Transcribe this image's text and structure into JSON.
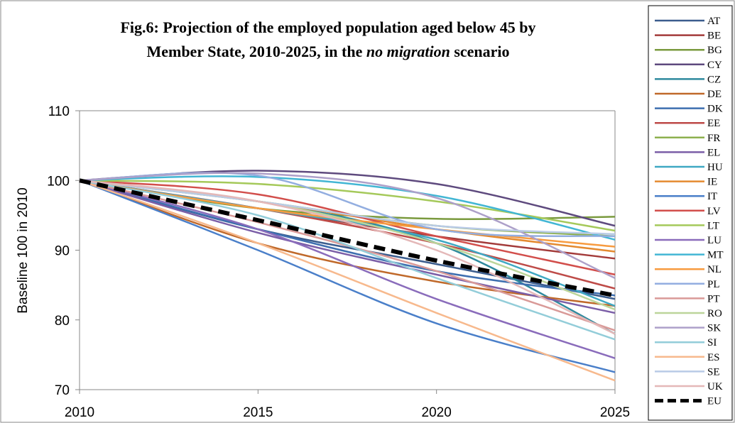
{
  "chart_data": {
    "type": "line",
    "title": {
      "line1": "Fig.6: Projection of the employed population aged below 45 by",
      "line2_start": "Member State, 2010-2025, in the",
      "line2_italic": "no migration",
      "line2_end": "scenario"
    },
    "y_label": "Baseline 100 in 2010",
    "x": [
      2010,
      2015,
      2020,
      2025
    ],
    "xlim": [
      2010,
      2025
    ],
    "xticks": [
      2010,
      2015,
      2020,
      2025
    ],
    "ylim": [
      70,
      110
    ],
    "yticks": [
      70,
      80,
      90,
      100,
      110
    ],
    "grid": false,
    "legend": "right",
    "series": [
      {
        "name": "AT",
        "color": "#3b5d8e",
        "values": [
          100,
          93,
          88,
          83
        ]
      },
      {
        "name": "BE",
        "color": "#a33b3a",
        "values": [
          100,
          96,
          92,
          88.8
        ]
      },
      {
        "name": "BG",
        "color": "#7a9a3e",
        "values": [
          100,
          96,
          94.5,
          94.8
        ]
      },
      {
        "name": "CY",
        "color": "#5e4a7e",
        "values": [
          100,
          101.4,
          99.5,
          93.5
        ]
      },
      {
        "name": "CZ",
        "color": "#2f8a9e",
        "values": [
          100,
          97,
          91,
          78
        ]
      },
      {
        "name": "DE",
        "color": "#c0692a",
        "values": [
          100,
          91,
          85.5,
          82
        ]
      },
      {
        "name": "DK",
        "color": "#3e6fb0",
        "values": [
          100,
          93,
          87,
          83.5
        ]
      },
      {
        "name": "EE",
        "color": "#be4b48",
        "values": [
          100,
          96,
          91,
          84.5
        ]
      },
      {
        "name": "FR",
        "color": "#8db04f",
        "values": [
          100,
          97,
          93.5,
          92
        ]
      },
      {
        "name": "EL",
        "color": "#7b5ea7",
        "values": [
          100,
          92.5,
          86.5,
          81
        ]
      },
      {
        "name": "HU",
        "color": "#3fa8c3",
        "values": [
          100,
          96,
          91.5,
          82
        ]
      },
      {
        "name": "IE",
        "color": "#e48a30",
        "values": [
          100,
          97,
          93,
          89.8
        ]
      },
      {
        "name": "IT",
        "color": "#4a7fc9",
        "values": [
          100,
          90,
          79.5,
          72.5
        ]
      },
      {
        "name": "LV",
        "color": "#d24e4b",
        "values": [
          100,
          98,
          92,
          86.5
        ]
      },
      {
        "name": "LT",
        "color": "#a5c95a",
        "values": [
          100,
          99.5,
          97,
          92.8
        ]
      },
      {
        "name": "LU",
        "color": "#8a6cbb",
        "values": [
          100,
          93,
          83,
          74.5
        ]
      },
      {
        "name": "MT",
        "color": "#42b6d4",
        "values": [
          100,
          100.5,
          97.8,
          91.5
        ]
      },
      {
        "name": "NL",
        "color": "#f79b40",
        "values": [
          100,
          96,
          93,
          90.5
        ]
      },
      {
        "name": "PL",
        "color": "#93aee0",
        "values": [
          100,
          100.7,
          93,
          92
        ]
      },
      {
        "name": "PT",
        "color": "#d99a98",
        "values": [
          100,
          94,
          87,
          78.5
        ]
      },
      {
        "name": "RO",
        "color": "#bcd59a",
        "values": [
          100,
          97,
          91,
          81.5
        ]
      },
      {
        "name": "SK",
        "color": "#ada0c9",
        "values": [
          100,
          101,
          97.5,
          86
        ]
      },
      {
        "name": "SI",
        "color": "#93cdd9",
        "values": [
          100,
          95,
          86,
          77.2
        ]
      },
      {
        "name": "ES",
        "color": "#f7b98d",
        "values": [
          100,
          91,
          81,
          71.3
        ]
      },
      {
        "name": "SE",
        "color": "#b9cbe6",
        "values": [
          100,
          97,
          93.5,
          92.3
        ]
      },
      {
        "name": "UK",
        "color": "#e4b8b8",
        "values": [
          100,
          97,
          90,
          78
        ]
      },
      {
        "name": "EU",
        "color": "#000000",
        "dashed": true,
        "values": [
          100,
          94.3,
          88.5,
          83.5
        ]
      }
    ]
  }
}
